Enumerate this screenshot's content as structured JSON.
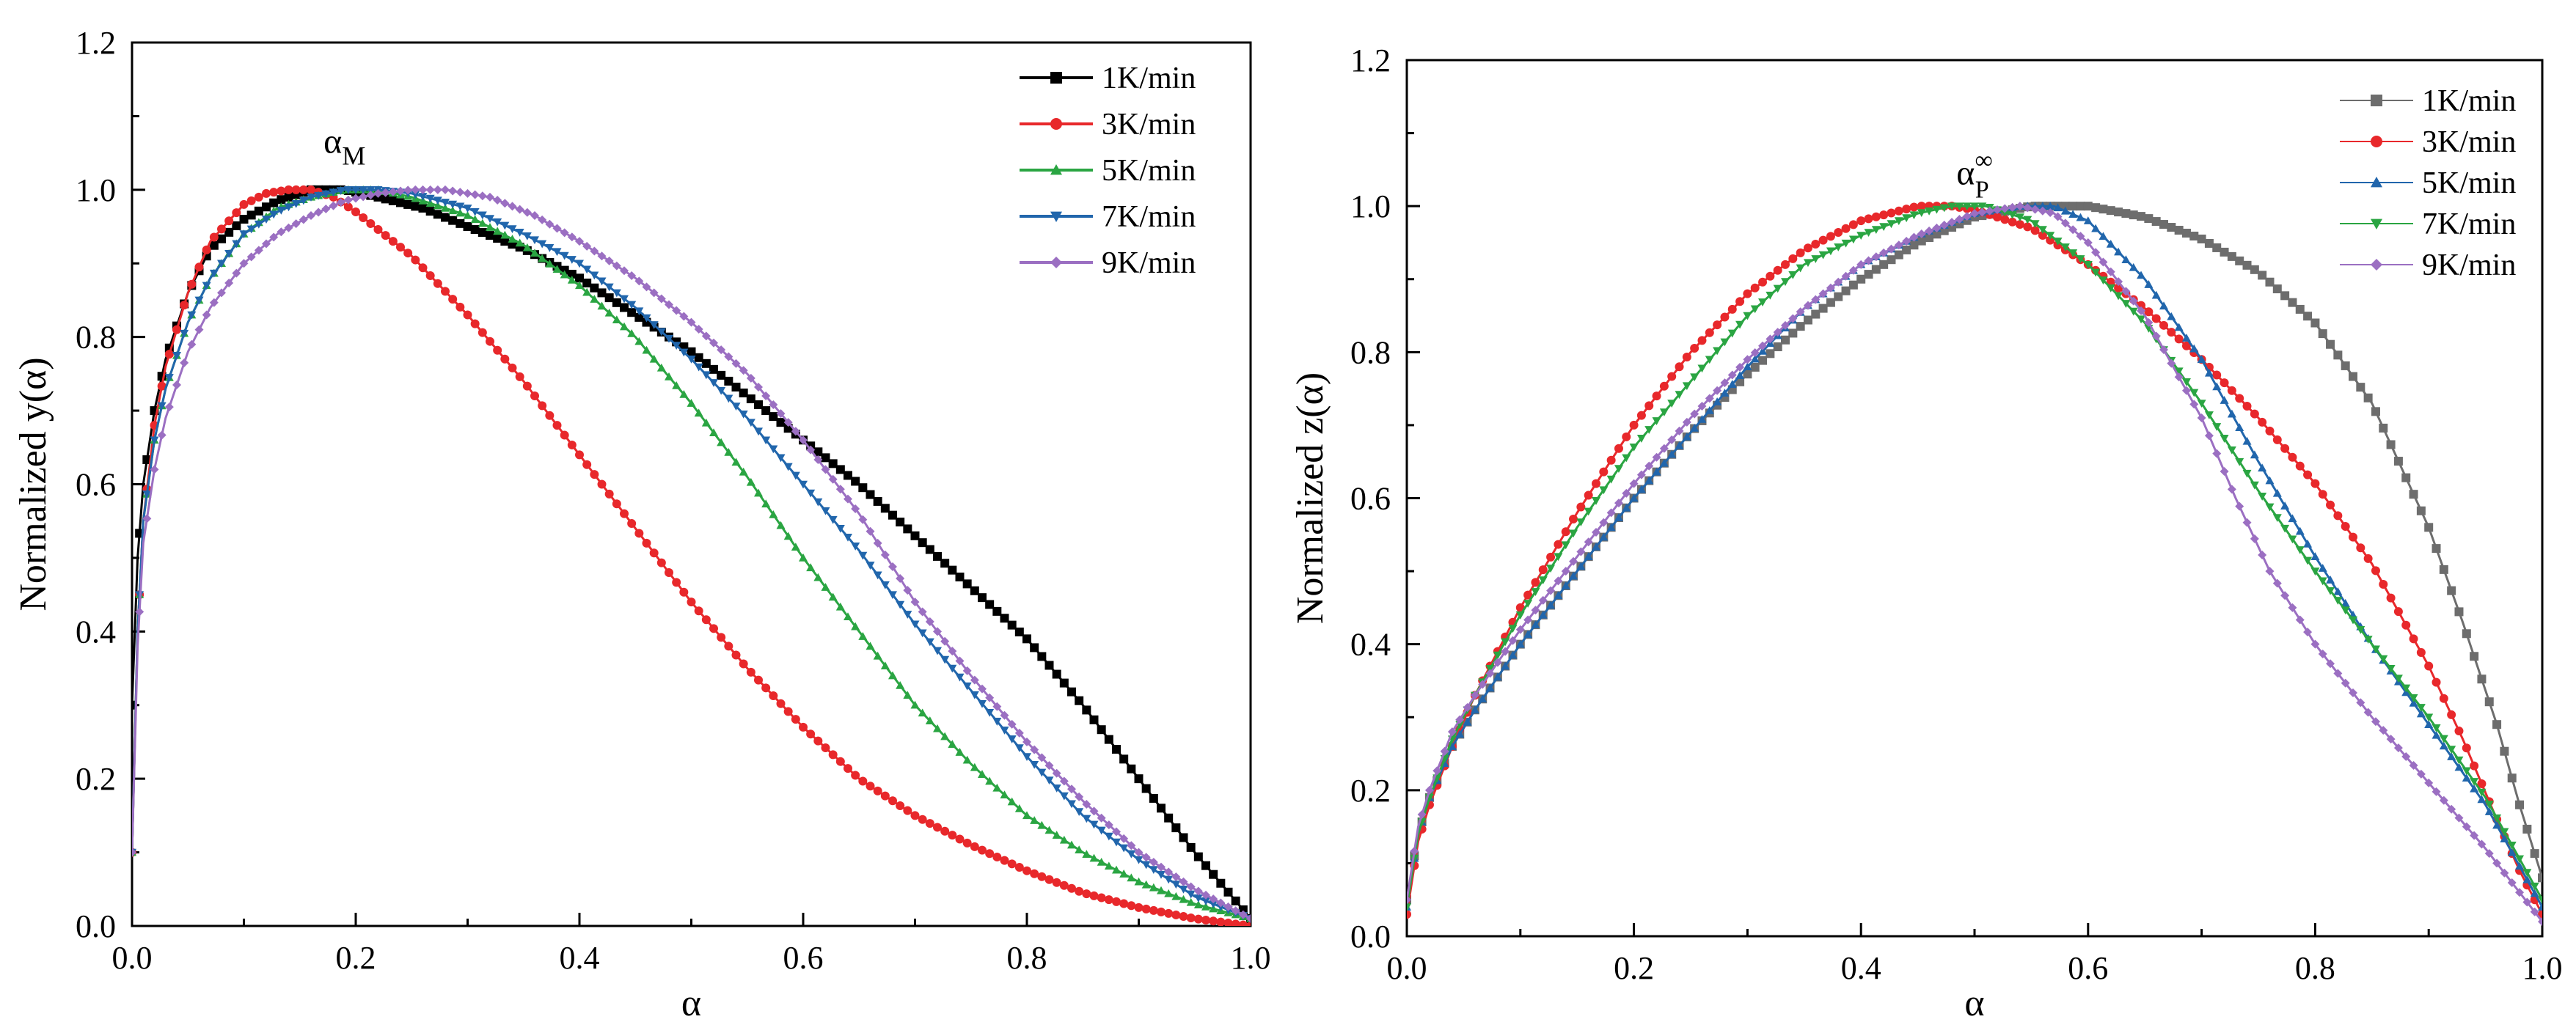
{
  "chart_data": [
    {
      "type": "line",
      "panel": "left",
      "title": "",
      "xlabel": "α",
      "ylabel": "Normalized y(α)",
      "xlim": [
        0,
        1.0
      ],
      "ylim": [
        0,
        1.2
      ],
      "xticks": [
        0.0,
        0.2,
        0.4,
        0.6,
        0.8,
        1.0
      ],
      "xtick_labels": [
        "0.0",
        "0.2",
        "0.4",
        "0.6",
        "0.8",
        "1.0"
      ],
      "yticks": [
        0.0,
        0.2,
        0.4,
        0.6,
        0.8,
        1.0,
        1.2
      ],
      "ytick_labels": [
        "0.0",
        "0.2",
        "0.4",
        "0.6",
        "0.8",
        "1.0",
        "1.2"
      ],
      "grid": false,
      "legend": "top-right",
      "annotation": {
        "base": "α",
        "sub": "M",
        "at": [
          0.19,
          1.05
        ]
      },
      "series": [
        {
          "name": "1K/min",
          "color": "#000000",
          "marker": "square",
          "x": [
            0,
            0.005,
            0.01,
            0.02,
            0.03,
            0.05,
            0.07,
            0.1,
            0.13,
            0.16,
            0.19,
            0.22,
            0.26,
            0.3,
            0.35,
            0.4,
            0.45,
            0.5,
            0.55,
            0.6,
            0.65,
            0.7,
            0.75,
            0.8,
            0.85,
            0.9,
            0.95,
            1.0
          ],
          "y": [
            0.3,
            0.5,
            0.6,
            0.7,
            0.77,
            0.86,
            0.92,
            0.96,
            0.985,
            1.0,
            1.0,
            0.99,
            0.975,
            0.95,
            0.92,
            0.88,
            0.83,
            0.78,
            0.72,
            0.66,
            0.6,
            0.53,
            0.46,
            0.39,
            0.3,
            0.2,
            0.1,
            0.01
          ]
        },
        {
          "name": "3K/min",
          "color": "#e8282b",
          "marker": "circle",
          "x": [
            0,
            0.005,
            0.01,
            0.02,
            0.03,
            0.05,
            0.07,
            0.1,
            0.12,
            0.14,
            0.16,
            0.18,
            0.2,
            0.25,
            0.3,
            0.35,
            0.4,
            0.45,
            0.5,
            0.55,
            0.6,
            0.65,
            0.7,
            0.75,
            0.8,
            0.85,
            0.9,
            0.95,
            1.0
          ],
          "y": [
            0.1,
            0.4,
            0.55,
            0.68,
            0.76,
            0.86,
            0.93,
            0.98,
            0.995,
            1.0,
            1.0,
            0.99,
            0.97,
            0.91,
            0.83,
            0.74,
            0.64,
            0.54,
            0.44,
            0.35,
            0.27,
            0.2,
            0.15,
            0.11,
            0.075,
            0.045,
            0.025,
            0.01,
            0.0
          ]
        },
        {
          "name": "5K/min",
          "color": "#2aa542",
          "marker": "triangle-up",
          "x": [
            0,
            0.005,
            0.01,
            0.02,
            0.03,
            0.05,
            0.07,
            0.1,
            0.13,
            0.16,
            0.19,
            0.22,
            0.25,
            0.3,
            0.35,
            0.4,
            0.45,
            0.5,
            0.55,
            0.6,
            0.65,
            0.7,
            0.75,
            0.8,
            0.85,
            0.9,
            0.95,
            1.0
          ],
          "y": [
            0.1,
            0.4,
            0.55,
            0.66,
            0.73,
            0.82,
            0.88,
            0.94,
            0.975,
            0.99,
            1.0,
            1.0,
            0.99,
            0.965,
            0.925,
            0.87,
            0.8,
            0.71,
            0.61,
            0.5,
            0.4,
            0.3,
            0.22,
            0.15,
            0.1,
            0.06,
            0.03,
            0.01
          ]
        },
        {
          "name": "7K/min",
          "color": "#2166ac",
          "marker": "triangle-down",
          "x": [
            0,
            0.005,
            0.01,
            0.02,
            0.03,
            0.05,
            0.07,
            0.1,
            0.13,
            0.16,
            0.19,
            0.22,
            0.25,
            0.3,
            0.35,
            0.4,
            0.45,
            0.5,
            0.55,
            0.6,
            0.65,
            0.7,
            0.75,
            0.8,
            0.85,
            0.9,
            0.95,
            1.0
          ],
          "y": [
            0.1,
            0.4,
            0.55,
            0.66,
            0.73,
            0.82,
            0.88,
            0.94,
            0.97,
            0.99,
            1.0,
            1.0,
            0.995,
            0.975,
            0.94,
            0.9,
            0.84,
            0.77,
            0.69,
            0.6,
            0.51,
            0.41,
            0.32,
            0.23,
            0.15,
            0.09,
            0.04,
            0.01
          ]
        },
        {
          "name": "9K/min",
          "color": "#9b6fc2",
          "marker": "diamond",
          "x": [
            0,
            0.005,
            0.01,
            0.02,
            0.03,
            0.05,
            0.07,
            0.1,
            0.13,
            0.16,
            0.19,
            0.22,
            0.25,
            0.28,
            0.32,
            0.36,
            0.4,
            0.45,
            0.5,
            0.55,
            0.6,
            0.65,
            0.7,
            0.75,
            0.8,
            0.85,
            0.9,
            0.95,
            1.0
          ],
          "y": [
            0.1,
            0.38,
            0.52,
            0.62,
            0.69,
            0.78,
            0.84,
            0.9,
            0.94,
            0.965,
            0.985,
            0.995,
            1.0,
            1.0,
            0.99,
            0.965,
            0.93,
            0.88,
            0.82,
            0.75,
            0.66,
            0.56,
            0.44,
            0.34,
            0.25,
            0.17,
            0.1,
            0.05,
            0.01
          ]
        }
      ]
    },
    {
      "type": "line",
      "panel": "right",
      "title": "",
      "xlabel": "α",
      "ylabel": "Normalized z(α)",
      "xlim": [
        0,
        1.0
      ],
      "ylim": [
        0,
        1.2
      ],
      "xticks": [
        0.0,
        0.2,
        0.4,
        0.6,
        0.8,
        1.0
      ],
      "xtick_labels": [
        "0.0",
        "0.2",
        "0.4",
        "0.6",
        "0.8",
        "1.0"
      ],
      "yticks": [
        0.0,
        0.2,
        0.4,
        0.6,
        0.8,
        1.0,
        1.2
      ],
      "ytick_labels": [
        "0.0",
        "0.2",
        "0.4",
        "0.6",
        "0.8",
        "1.0",
        "1.2"
      ],
      "grid": false,
      "legend": "top-right",
      "annotation": {
        "base": "α",
        "sub": "P",
        "sup": "∞",
        "at": [
          0.5,
          1.03
        ]
      },
      "series": [
        {
          "name": "1K/min",
          "color": "#6d6d6d",
          "marker": "square",
          "x": [
            0,
            0.01,
            0.02,
            0.04,
            0.06,
            0.1,
            0.15,
            0.2,
            0.25,
            0.3,
            0.35,
            0.4,
            0.45,
            0.5,
            0.55,
            0.6,
            0.65,
            0.7,
            0.75,
            0.8,
            0.85,
            0.9,
            0.93,
            0.96,
            0.98,
            1.0
          ],
          "y": [
            0.05,
            0.14,
            0.19,
            0.26,
            0.31,
            0.4,
            0.5,
            0.6,
            0.69,
            0.77,
            0.84,
            0.9,
            0.95,
            0.985,
            1.0,
            1.0,
            0.985,
            0.955,
            0.91,
            0.84,
            0.73,
            0.56,
            0.43,
            0.29,
            0.18,
            0.08
          ]
        },
        {
          "name": "3K/min",
          "color": "#e8282b",
          "marker": "circle",
          "x": [
            0,
            0.01,
            0.02,
            0.04,
            0.06,
            0.1,
            0.15,
            0.2,
            0.25,
            0.3,
            0.35,
            0.4,
            0.45,
            0.48,
            0.5,
            0.55,
            0.6,
            0.65,
            0.7,
            0.75,
            0.8,
            0.85,
            0.9,
            0.93,
            0.96,
            0.98,
            1.0
          ],
          "y": [
            0.03,
            0.13,
            0.18,
            0.26,
            0.33,
            0.45,
            0.58,
            0.7,
            0.8,
            0.88,
            0.94,
            0.98,
            1.0,
            1.0,
            0.995,
            0.97,
            0.92,
            0.86,
            0.79,
            0.71,
            0.62,
            0.51,
            0.37,
            0.27,
            0.16,
            0.09,
            0.03
          ]
        },
        {
          "name": "5K/min",
          "color": "#2166ac",
          "marker": "triangle-up",
          "x": [
            0,
            0.01,
            0.02,
            0.04,
            0.06,
            0.1,
            0.15,
            0.2,
            0.25,
            0.3,
            0.35,
            0.4,
            0.45,
            0.5,
            0.54,
            0.57,
            0.6,
            0.65,
            0.7,
            0.75,
            0.8,
            0.85,
            0.9,
            0.95,
            1.0
          ],
          "y": [
            0.04,
            0.14,
            0.19,
            0.26,
            0.31,
            0.4,
            0.5,
            0.6,
            0.69,
            0.78,
            0.86,
            0.92,
            0.96,
            0.99,
            1.0,
            1.0,
            0.98,
            0.9,
            0.79,
            0.65,
            0.52,
            0.4,
            0.29,
            0.18,
            0.04
          ]
        },
        {
          "name": "7K/min",
          "color": "#2aa542",
          "marker": "triangle-down",
          "x": [
            0,
            0.01,
            0.02,
            0.04,
            0.06,
            0.1,
            0.15,
            0.2,
            0.25,
            0.3,
            0.35,
            0.4,
            0.45,
            0.48,
            0.51,
            0.55,
            0.6,
            0.65,
            0.7,
            0.75,
            0.8,
            0.85,
            0.9,
            0.95,
            1.0
          ],
          "y": [
            0.04,
            0.14,
            0.19,
            0.27,
            0.33,
            0.44,
            0.56,
            0.67,
            0.76,
            0.85,
            0.92,
            0.96,
            0.99,
            1.0,
            1.0,
            0.98,
            0.92,
            0.84,
            0.73,
            0.61,
            0.5,
            0.4,
            0.3,
            0.19,
            0.05
          ]
        },
        {
          "name": "9K/min",
          "color": "#9b6fc2",
          "marker": "diamond",
          "x": [
            0,
            0.01,
            0.02,
            0.04,
            0.06,
            0.1,
            0.15,
            0.2,
            0.25,
            0.3,
            0.35,
            0.4,
            0.45,
            0.5,
            0.54,
            0.57,
            0.6,
            0.65,
            0.7,
            0.73,
            0.76,
            0.8,
            0.85,
            0.9,
            0.95,
            1.0
          ],
          "y": [
            0.05,
            0.15,
            0.2,
            0.28,
            0.33,
            0.42,
            0.52,
            0.62,
            0.71,
            0.79,
            0.86,
            0.92,
            0.96,
            0.99,
            1.0,
            0.99,
            0.95,
            0.85,
            0.71,
            0.6,
            0.5,
            0.4,
            0.3,
            0.21,
            0.12,
            0.02
          ]
        }
      ]
    }
  ]
}
